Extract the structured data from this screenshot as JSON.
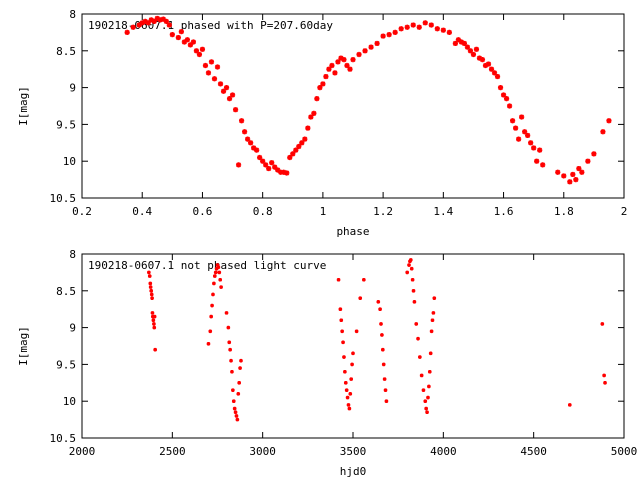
{
  "chart_data": [
    {
      "type": "scatter",
      "title": "190218-0607.1 phased with P=207.60day",
      "xlabel": "phase",
      "ylabel": "I[mag]",
      "xlim": [
        0.2,
        2.0
      ],
      "ylim": [
        10.5,
        8.0
      ],
      "y_inverted": true,
      "xticks": [
        "0.2",
        "0.4",
        "0.6",
        "0.8",
        "1",
        "1.2",
        "1.4",
        "1.6",
        "1.8",
        "2"
      ],
      "yticks": [
        "8",
        "8.5",
        "9",
        "9.5",
        "10",
        "10.5"
      ],
      "marker_color": "#ff0000",
      "grid": false,
      "series": [
        {
          "x": [
            0.35,
            0.37,
            0.39,
            0.4,
            0.41,
            0.42,
            0.43,
            0.44,
            0.45,
            0.46,
            0.47,
            0.48,
            0.49,
            0.5,
            0.52,
            0.53,
            0.54,
            0.55,
            0.56,
            0.57,
            0.58,
            0.59,
            0.6,
            0.61,
            0.62,
            0.63,
            0.64,
            0.65,
            0.66,
            0.67,
            0.68,
            0.69,
            0.7,
            0.71,
            0.72,
            0.73,
            0.74,
            0.75,
            0.76,
            0.77,
            0.78,
            0.79,
            0.8,
            0.81,
            0.82,
            0.83,
            0.84,
            0.85,
            0.86,
            0.87,
            0.88,
            0.89,
            0.9,
            0.91,
            0.92,
            0.93,
            0.94,
            0.95,
            0.96,
            0.97,
            0.98,
            0.99,
            1.0,
            1.01,
            1.02,
            1.03,
            1.04,
            1.05,
            1.06,
            1.07,
            1.08,
            1.09,
            1.1,
            1.12,
            1.14,
            1.16,
            1.18,
            1.2,
            1.22,
            1.24,
            1.26,
            1.28,
            1.3,
            1.32,
            1.34,
            1.36,
            1.38,
            1.4,
            1.42,
            1.44,
            1.45,
            1.46,
            1.47,
            1.48,
            1.49,
            1.5,
            1.51,
            1.52,
            1.53,
            1.54,
            1.55,
            1.56,
            1.57,
            1.58,
            1.59,
            1.6,
            1.61,
            1.62,
            1.63,
            1.64,
            1.65,
            1.66,
            1.67,
            1.68,
            1.69,
            1.7,
            1.71,
            1.72,
            1.73,
            1.78,
            1.8,
            1.82,
            1.83,
            1.84,
            1.85,
            1.86,
            1.88,
            1.9,
            1.93,
            1.95
          ],
          "y": [
            8.25,
            8.18,
            8.15,
            8.12,
            8.1,
            8.12,
            8.08,
            8.1,
            8.06,
            8.08,
            8.07,
            8.1,
            8.15,
            8.28,
            8.32,
            8.24,
            8.38,
            8.35,
            8.42,
            8.38,
            8.5,
            8.55,
            8.48,
            8.7,
            8.8,
            8.65,
            8.88,
            8.72,
            8.95,
            9.05,
            9.0,
            9.15,
            9.1,
            9.3,
            10.05,
            9.45,
            9.6,
            9.7,
            9.75,
            9.82,
            9.85,
            9.95,
            10.0,
            10.05,
            10.1,
            10.02,
            10.08,
            10.12,
            10.15,
            10.15,
            10.16,
            9.95,
            9.9,
            9.85,
            9.8,
            9.75,
            9.7,
            9.55,
            9.4,
            9.35,
            9.15,
            9.0,
            8.95,
            8.85,
            8.75,
            8.7,
            8.8,
            8.65,
            8.6,
            8.62,
            8.7,
            8.75,
            8.62,
            8.55,
            8.5,
            8.45,
            8.4,
            8.3,
            8.28,
            8.25,
            8.2,
            8.18,
            8.15,
            8.18,
            8.12,
            8.15,
            8.2,
            8.22,
            8.25,
            8.4,
            8.35,
            8.38,
            8.4,
            8.45,
            8.5,
            8.55,
            8.48,
            8.6,
            8.62,
            8.7,
            8.68,
            8.75,
            8.8,
            8.85,
            9.0,
            9.1,
            9.15,
            9.25,
            9.45,
            9.55,
            9.7,
            9.4,
            9.6,
            9.65,
            9.75,
            9.82,
            10.0,
            9.85,
            10.05,
            10.15,
            10.2,
            10.28,
            10.18,
            10.25,
            10.1,
            10.15,
            10.0,
            9.9,
            9.6,
            9.45
          ]
        }
      ]
    },
    {
      "type": "scatter",
      "title": "190218-0607.1 not phased light curve",
      "xlabel": "hjd0",
      "ylabel": "I[mag]",
      "xlim": [
        2000,
        5000
      ],
      "ylim": [
        10.5,
        8.0
      ],
      "y_inverted": true,
      "xticks": [
        "2000",
        "2500",
        "3000",
        "3500",
        "4000",
        "4500",
        "5000"
      ],
      "yticks": [
        "8",
        "8.5",
        "9",
        "9.5",
        "10",
        "10.5"
      ],
      "marker_color": "#ff0000",
      "grid": false,
      "series": [
        {
          "x": [
            2370,
            2375,
            2378,
            2380,
            2383,
            2386,
            2388,
            2390,
            2392,
            2395,
            2398,
            2400,
            2402,
            2405,
            2700,
            2710,
            2715,
            2720,
            2725,
            2730,
            2735,
            2740,
            2745,
            2750,
            2755,
            2760,
            2765,
            2770,
            2800,
            2810,
            2815,
            2820,
            2825,
            2830,
            2835,
            2840,
            2845,
            2850,
            2855,
            2860,
            2865,
            2870,
            2875,
            2880,
            3420,
            3430,
            3435,
            3440,
            3445,
            3450,
            3455,
            3460,
            3465,
            3470,
            3475,
            3480,
            3485,
            3490,
            3495,
            3500,
            3520,
            3540,
            3560,
            3640,
            3650,
            3655,
            3660,
            3665,
            3670,
            3675,
            3680,
            3685,
            3800,
            3810,
            3815,
            3820,
            3825,
            3830,
            3835,
            3840,
            3850,
            3860,
            3870,
            3880,
            3890,
            3900,
            3905,
            3910,
            3915,
            3920,
            3925,
            3930,
            3935,
            3940,
            3945,
            3950,
            4700,
            4880,
            4890,
            4895
          ],
          "y": [
            8.25,
            8.3,
            8.4,
            8.45,
            8.5,
            8.55,
            8.6,
            8.8,
            8.85,
            8.9,
            8.95,
            9.0,
            8.85,
            9.3,
            9.22,
            9.05,
            8.85,
            8.7,
            8.55,
            8.4,
            8.3,
            8.25,
            8.2,
            8.15,
            8.18,
            8.25,
            8.35,
            8.45,
            8.8,
            9.0,
            9.2,
            9.3,
            9.45,
            9.6,
            9.85,
            10.0,
            10.1,
            10.15,
            10.2,
            10.25,
            9.9,
            9.75,
            9.55,
            9.45,
            8.35,
            8.75,
            8.9,
            9.05,
            9.2,
            9.4,
            9.6,
            9.75,
            9.85,
            9.95,
            10.05,
            10.1,
            9.9,
            9.7,
            9.5,
            9.35,
            9.05,
            8.6,
            8.35,
            8.65,
            8.75,
            8.95,
            9.1,
            9.3,
            9.5,
            9.7,
            9.85,
            10.0,
            8.25,
            8.15,
            8.1,
            8.08,
            8.2,
            8.35,
            8.5,
            8.65,
            8.95,
            9.15,
            9.4,
            9.65,
            9.85,
            10.0,
            10.1,
            10.15,
            9.95,
            9.8,
            9.6,
            9.35,
            9.05,
            8.9,
            8.8,
            8.6,
            10.05,
            8.95,
            9.65,
            9.75
          ]
        }
      ]
    }
  ]
}
